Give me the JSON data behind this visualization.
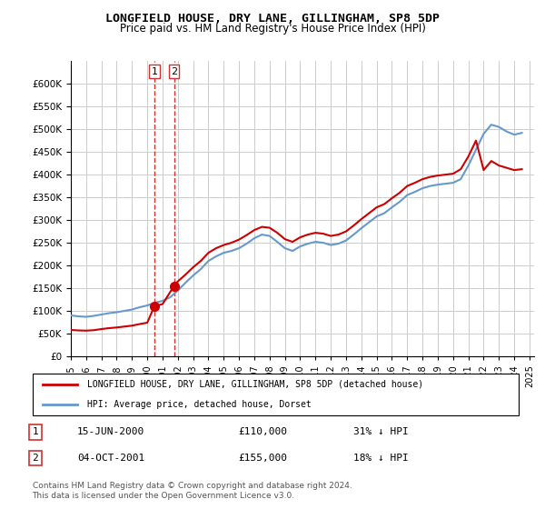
{
  "title": "LONGFIELD HOUSE, DRY LANE, GILLINGHAM, SP8 5DP",
  "subtitle": "Price paid vs. HM Land Registry's House Price Index (HPI)",
  "legend_entry1": "LONGFIELD HOUSE, DRY LANE, GILLINGHAM, SP8 5DP (detached house)",
  "legend_entry2": "HPI: Average price, detached house, Dorset",
  "transaction1_label": "1",
  "transaction1_date": "15-JUN-2000",
  "transaction1_price": "£110,000",
  "transaction1_hpi": "31% ↓ HPI",
  "transaction2_label": "2",
  "transaction2_date": "04-OCT-2001",
  "transaction2_price": "£155,000",
  "transaction2_hpi": "18% ↓ HPI",
  "footnote": "Contains HM Land Registry data © Crown copyright and database right 2024.\nThis data is licensed under the Open Government Licence v3.0.",
  "red_color": "#cc0000",
  "blue_color": "#6699cc",
  "marker_color_red": "#cc0000",
  "marker_color_blue": "#6699cc",
  "vline_color": "#cc3333",
  "background_color": "#ffffff",
  "grid_color": "#cccccc",
  "ylim": [
    0,
    650000
  ],
  "yticks": [
    0,
    50000,
    100000,
    150000,
    200000,
    250000,
    300000,
    350000,
    400000,
    450000,
    500000,
    550000,
    600000
  ],
  "hpi_data": {
    "years": [
      1995.0,
      1995.5,
      1996.0,
      1996.5,
      1997.0,
      1997.5,
      1998.0,
      1998.5,
      1999.0,
      1999.5,
      2000.0,
      2000.5,
      2001.0,
      2001.5,
      2002.0,
      2002.5,
      2003.0,
      2003.5,
      2004.0,
      2004.5,
      2005.0,
      2005.5,
      2006.0,
      2006.5,
      2007.0,
      2007.5,
      2008.0,
      2008.5,
      2009.0,
      2009.5,
      2010.0,
      2010.5,
      2011.0,
      2011.5,
      2012.0,
      2012.5,
      2013.0,
      2013.5,
      2014.0,
      2014.5,
      2015.0,
      2015.5,
      2016.0,
      2016.5,
      2017.0,
      2017.5,
      2018.0,
      2018.5,
      2019.0,
      2019.5,
      2020.0,
      2020.5,
      2021.0,
      2021.5,
      2022.0,
      2022.5,
      2023.0,
      2023.5,
      2024.0,
      2024.5
    ],
    "hpi_values": [
      90000,
      88000,
      87000,
      89000,
      92000,
      95000,
      97000,
      100000,
      103000,
      108000,
      112000,
      118000,
      122000,
      130000,
      145000,
      162000,
      178000,
      192000,
      210000,
      220000,
      228000,
      232000,
      238000,
      248000,
      260000,
      268000,
      265000,
      252000,
      238000,
      232000,
      242000,
      248000,
      252000,
      250000,
      245000,
      248000,
      255000,
      268000,
      282000,
      295000,
      308000,
      315000,
      328000,
      340000,
      355000,
      362000,
      370000,
      375000,
      378000,
      380000,
      382000,
      390000,
      420000,
      455000,
      490000,
      510000,
      505000,
      495000,
      488000,
      492000
    ],
    "price_paid_years": [
      2000.46,
      2001.75
    ],
    "price_paid_values": [
      110000,
      155000
    ],
    "hpi_adjusted_years": [
      1995.0,
      1995.5,
      1996.0,
      1996.5,
      1997.0,
      1997.5,
      1998.0,
      1998.5,
      1999.0,
      1999.5,
      2000.0,
      2000.46,
      2001.0,
      2001.75,
      2002.0,
      2002.5,
      2003.0,
      2003.5,
      2004.0,
      2004.5,
      2005.0,
      2005.5,
      2006.0,
      2006.5,
      2007.0,
      2007.5,
      2008.0,
      2008.5,
      2009.0,
      2009.5,
      2010.0,
      2010.5,
      2011.0,
      2011.5,
      2012.0,
      2012.5,
      2013.0,
      2013.5,
      2014.0,
      2014.5,
      2015.0,
      2015.5,
      2016.0,
      2016.5,
      2017.0,
      2017.5,
      2018.0,
      2018.5,
      2019.0,
      2019.5,
      2020.0,
      2020.5,
      2021.0,
      2021.5,
      2022.0,
      2022.5,
      2023.0,
      2023.5,
      2024.0,
      2024.5
    ],
    "red_values": [
      58000,
      57000,
      56500,
      57500,
      60000,
      62000,
      63500,
      65500,
      67500,
      71000,
      74000,
      110000,
      115000,
      155000,
      165000,
      180000,
      196000,
      210000,
      228000,
      238000,
      245000,
      250000,
      257000,
      267000,
      278000,
      285000,
      283000,
      272000,
      258000,
      252000,
      262000,
      268000,
      272000,
      270000,
      265000,
      268000,
      275000,
      288000,
      302000,
      315000,
      328000,
      335000,
      348000,
      360000,
      375000,
      382000,
      390000,
      395000,
      398000,
      400000,
      402000,
      412000,
      440000,
      475000,
      410000,
      430000,
      420000,
      415000,
      410000,
      412000
    ]
  },
  "xtick_years": [
    1995,
    1996,
    1997,
    1998,
    1999,
    2000,
    2001,
    2002,
    2003,
    2004,
    2005,
    2006,
    2007,
    2008,
    2009,
    2010,
    2011,
    2012,
    2013,
    2014,
    2015,
    2016,
    2017,
    2018,
    2019,
    2020,
    2021,
    2022,
    2023,
    2024,
    2025
  ]
}
